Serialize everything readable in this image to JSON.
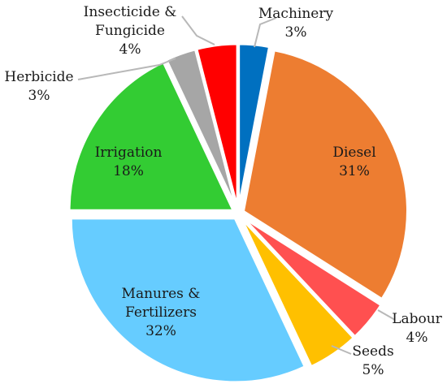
{
  "chart_data": {
    "type": "pie",
    "title": "",
    "slices": [
      {
        "name": "Machinery",
        "value": 3,
        "label": "3%",
        "color": "#0070C0"
      },
      {
        "name": "Diesel",
        "value": 31,
        "label": "31%",
        "color": "#ED7D31"
      },
      {
        "name": "Labour",
        "value": 4,
        "label": "4%",
        "color": "#FF5050"
      },
      {
        "name": "Seeds",
        "value": 5,
        "label": "5%",
        "color": "#FFC000"
      },
      {
        "name": "Manures & Fertilizers",
        "value": 32,
        "label": "32%",
        "color": "#66CCFF"
      },
      {
        "name": "Irrigation",
        "value": 18,
        "label": "18%",
        "color": "#33CC33"
      },
      {
        "name": "Herbicide",
        "value": 3,
        "label": "3%",
        "color": "#A6A6A6"
      },
      {
        "name": "Insecticide & Fungicide",
        "value": 4,
        "label": "4%",
        "color": "#FF0000"
      }
    ],
    "data_labels": "category name and percentage",
    "slice_separators": "white",
    "legend": "none"
  }
}
